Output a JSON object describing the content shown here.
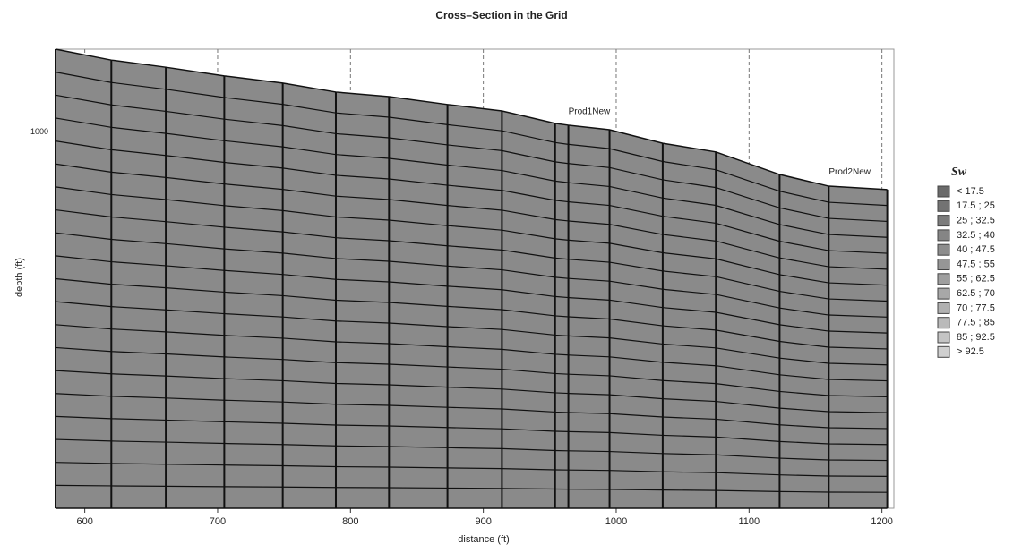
{
  "chart_data": {
    "type": "cross-section",
    "title": "Cross–Section in the Grid",
    "x_label": "distance (ft)",
    "y_label": "depth (ft)",
    "xlim": [
      578,
      1209
    ],
    "ylim": [
      978,
      1100
    ],
    "xticks": [
      600,
      700,
      800,
      900,
      1000,
      1100,
      1200
    ],
    "yticks": [
      1000
    ],
    "inverted_y": true,
    "x": [
      578,
      620,
      661,
      705,
      749,
      789,
      829,
      873,
      914,
      954,
      964,
      995,
      1035,
      1075,
      1123,
      1160,
      1204
    ],
    "top_depth": [
      978,
      980.9,
      982.8,
      985.1,
      987.0,
      989.4,
      990.6,
      992.7,
      994.4,
      997.7,
      998.2,
      999.4,
      1003.0,
      1005.3,
      1011.3,
      1014.4,
      1015.3
    ],
    "base_depth": 1100,
    "layers": 20,
    "fill_color": "#8a8a8a",
    "annotations": [
      {
        "text": "Prod1New",
        "x": 964,
        "y": 997
      },
      {
        "text": "Prod2New",
        "x": 1160,
        "y": 1013
      }
    ],
    "legend": {
      "title": "Sw",
      "entries": [
        {
          "label": "< 17.5",
          "color": "#6a6a6a"
        },
        {
          "label": "17.5 ; 25",
          "color": "#737373"
        },
        {
          "label": "25 ; 32.5",
          "color": "#7c7c7c"
        },
        {
          "label": "32.5 ; 40",
          "color": "#858585"
        },
        {
          "label": "40 ; 47.5",
          "color": "#8d8d8d"
        },
        {
          "label": "47.5 ; 55",
          "color": "#969696"
        },
        {
          "label": "55 ; 62.5",
          "color": "#9f9f9f"
        },
        {
          "label": "62.5 ; 70",
          "color": "#a8a8a8"
        },
        {
          "label": "70 ; 77.5",
          "color": "#b1b1b1"
        },
        {
          "label": "77.5 ; 85",
          "color": "#bababa"
        },
        {
          "label": "85 ; 92.5",
          "color": "#c4c4c4"
        },
        {
          "label": "> 92.5",
          "color": "#cfcfcf"
        }
      ]
    }
  }
}
